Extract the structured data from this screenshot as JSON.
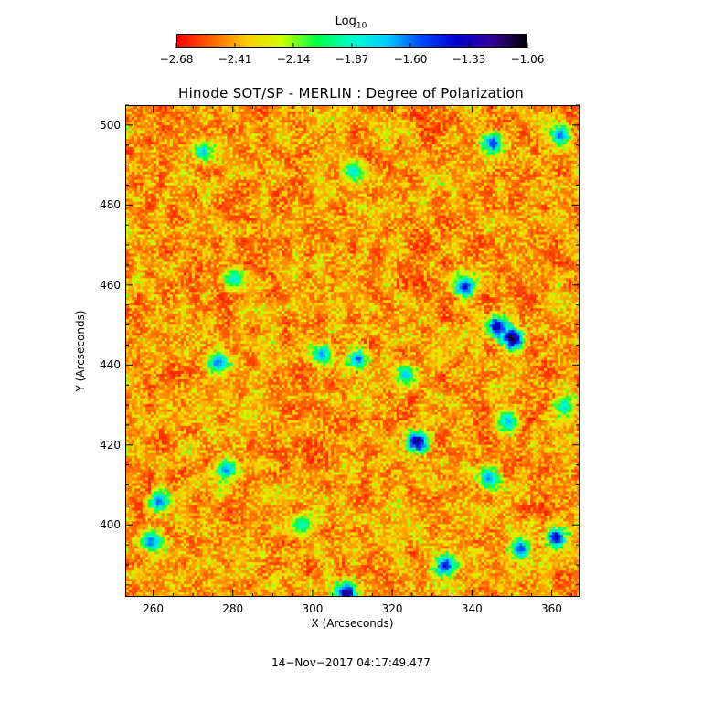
{
  "chart_data": {
    "type": "heatmap",
    "title": "Hinode SOT/SP - MERLIN : Degree of Polarization",
    "xlabel": "X (Arcseconds)",
    "ylabel": "Y (Arcseconds)",
    "xlim": [
      253,
      367
    ],
    "ylim": [
      382,
      505
    ],
    "x_ticks": [
      "260",
      "280",
      "300",
      "320",
      "340",
      "360"
    ],
    "x_tick_values": [
      260,
      280,
      300,
      320,
      340,
      360
    ],
    "y_ticks": [
      "400",
      "420",
      "440",
      "460",
      "480",
      "500"
    ],
    "y_tick_values": [
      400,
      420,
      440,
      460,
      480,
      500
    ],
    "colorbar": {
      "label_main": "Log",
      "label_sub": "10",
      "ticks": [
        "−2.68",
        "−2.41",
        "−2.14",
        "−1.87",
        "−1.60",
        "−1.33",
        "−1.06"
      ],
      "tick_values": [
        -2.68,
        -2.41,
        -2.14,
        -1.87,
        -1.6,
        -1.33,
        -1.06
      ],
      "range": [
        -2.68,
        -1.06
      ],
      "colormap": [
        "#ff0000",
        "#ff6600",
        "#ffcc00",
        "#ccff00",
        "#00ff44",
        "#00ffcc",
        "#00ccff",
        "#0044ff",
        "#0000cc",
        "#330099",
        "#000000"
      ]
    },
    "timestamp": "14−Nov−2017 04:17:49.477",
    "features": [
      {
        "x": 350,
        "y": 447,
        "value": -1.1
      },
      {
        "x": 346,
        "y": 450,
        "value": -1.3
      },
      {
        "x": 326,
        "y": 421,
        "value": -1.2
      },
      {
        "x": 308,
        "y": 383,
        "value": -1.15
      },
      {
        "x": 333,
        "y": 390,
        "value": -1.4
      },
      {
        "x": 338,
        "y": 460,
        "value": -1.45
      },
      {
        "x": 352,
        "y": 394,
        "value": -1.5
      },
      {
        "x": 361,
        "y": 397,
        "value": -1.35
      },
      {
        "x": 261,
        "y": 406,
        "value": -1.55
      },
      {
        "x": 259,
        "y": 396,
        "value": -1.6
      },
      {
        "x": 278,
        "y": 414,
        "value": -1.65
      },
      {
        "x": 345,
        "y": 496,
        "value": -1.5
      },
      {
        "x": 362,
        "y": 498,
        "value": -1.6
      },
      {
        "x": 344,
        "y": 412,
        "value": -1.65
      },
      {
        "x": 276,
        "y": 441,
        "value": -1.6
      },
      {
        "x": 302,
        "y": 443,
        "value": -1.65
      },
      {
        "x": 311,
        "y": 442,
        "value": -1.6
      },
      {
        "x": 280,
        "y": 462,
        "value": -1.8
      },
      {
        "x": 323,
        "y": 438,
        "value": -1.75
      },
      {
        "x": 349,
        "y": 426,
        "value": -1.7
      },
      {
        "x": 272,
        "y": 494,
        "value": -1.75
      },
      {
        "x": 310,
        "y": 489,
        "value": -1.8
      },
      {
        "x": 363,
        "y": 430,
        "value": -1.8
      },
      {
        "x": 297,
        "y": 400,
        "value": -1.85
      }
    ]
  }
}
